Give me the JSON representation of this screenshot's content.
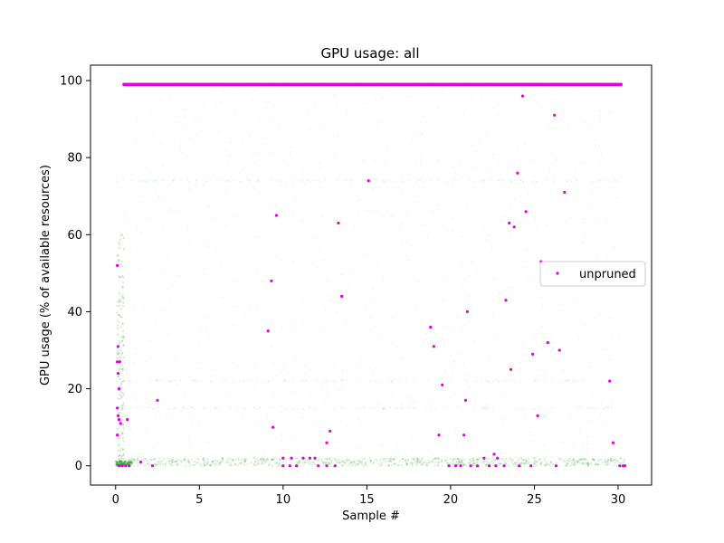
{
  "chart_data": {
    "type": "scatter",
    "title": "GPU usage: all",
    "xlabel": "Sample #",
    "ylabel": "GPU usage (% of available resources)",
    "xlim": [
      -1.5,
      32.0
    ],
    "ylim": [
      -5,
      104
    ],
    "xticks": [
      0,
      5,
      10,
      15,
      20,
      25,
      30
    ],
    "yticks": [
      0,
      20,
      40,
      60,
      80,
      100
    ],
    "grid": false,
    "legend": {
      "position": "center-right",
      "entries": [
        "unpruned"
      ]
    },
    "colors": {
      "unpruned": "#e000e0",
      "background": "#2ca02c"
    },
    "series": [
      {
        "name": "unpruned",
        "color": "#e000e0",
        "points": [
          [
            0.1,
            52
          ],
          [
            0.15,
            31
          ],
          [
            0.1,
            27
          ],
          [
            0.25,
            27
          ],
          [
            0.15,
            24
          ],
          [
            0.2,
            20
          ],
          [
            0.1,
            15
          ],
          [
            0.15,
            13
          ],
          [
            0.2,
            12
          ],
          [
            0.3,
            11
          ],
          [
            0.1,
            8
          ],
          [
            0.7,
            12
          ],
          [
            2.5,
            17
          ],
          [
            1.5,
            1
          ],
          [
            9.1,
            35
          ],
          [
            9.3,
            48
          ],
          [
            9.6,
            65
          ],
          [
            9.4,
            10
          ],
          [
            13.3,
            63
          ],
          [
            13.5,
            44
          ],
          [
            12.8,
            9
          ],
          [
            12.6,
            6
          ],
          [
            15.1,
            74
          ],
          [
            18.8,
            36
          ],
          [
            19.0,
            31
          ],
          [
            19.5,
            21
          ],
          [
            19.3,
            8
          ],
          [
            20.9,
            17
          ],
          [
            20.8,
            8
          ],
          [
            21.0,
            40
          ],
          [
            22.0,
            2
          ],
          [
            22.6,
            3
          ],
          [
            22.8,
            2
          ],
          [
            23.3,
            43
          ],
          [
            23.5,
            63
          ],
          [
            23.6,
            25
          ],
          [
            23.8,
            62
          ],
          [
            24.0,
            76
          ],
          [
            24.3,
            96
          ],
          [
            24.5,
            66
          ],
          [
            24.9,
            29
          ],
          [
            25.2,
            13
          ],
          [
            25.4,
            53
          ],
          [
            25.8,
            32
          ],
          [
            26.2,
            91
          ],
          [
            26.5,
            30
          ],
          [
            26.8,
            71
          ],
          [
            29.5,
            22
          ],
          [
            29.7,
            6
          ],
          [
            0.2,
            0
          ],
          [
            0.4,
            0
          ],
          [
            0.6,
            0
          ],
          [
            0.8,
            0
          ],
          [
            2.2,
            0
          ],
          [
            10.0,
            0
          ],
          [
            10.4,
            0
          ],
          [
            10.8,
            0
          ],
          [
            12.1,
            0
          ],
          [
            12.6,
            0
          ],
          [
            13.1,
            0
          ],
          [
            19.9,
            0
          ],
          [
            20.3,
            0
          ],
          [
            20.6,
            0
          ],
          [
            21.2,
            0
          ],
          [
            21.6,
            0
          ],
          [
            22.3,
            0
          ],
          [
            22.7,
            0
          ],
          [
            23.2,
            0
          ],
          [
            24.1,
            0
          ],
          [
            24.8,
            0
          ],
          [
            26.3,
            0
          ],
          [
            30.1,
            0
          ],
          [
            30.3,
            0
          ],
          [
            30.4,
            0
          ],
          [
            10.5,
            2
          ],
          [
            11.2,
            2
          ],
          [
            11.6,
            2
          ],
          [
            11.9,
            2
          ],
          [
            10.0,
            2
          ]
        ]
      }
    ]
  }
}
